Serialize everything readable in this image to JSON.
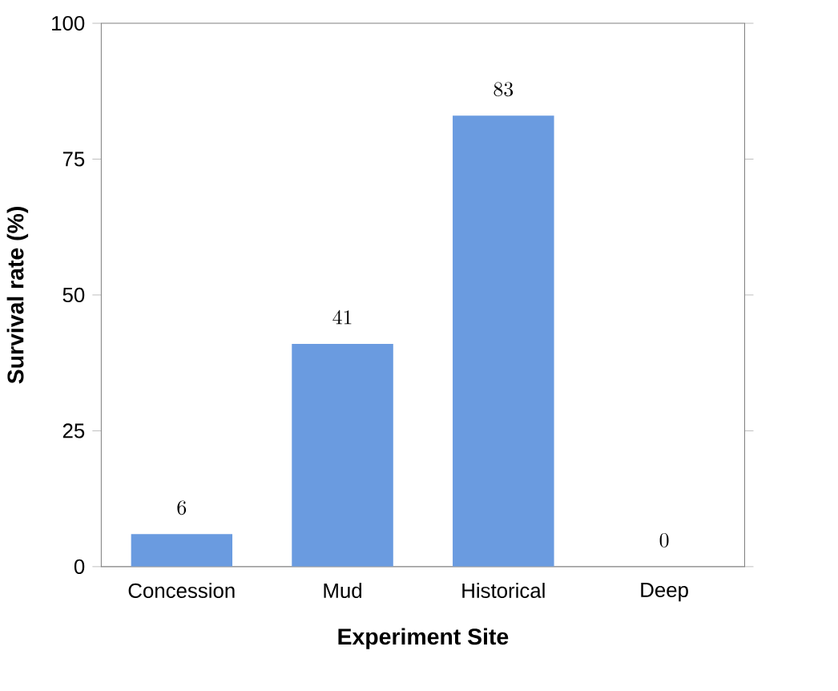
{
  "chart_data": {
    "type": "bar",
    "xlabel": "Experiment Site",
    "ylabel": "Survival rate (%)",
    "categories": [
      "Concession",
      "Mud",
      "Historical",
      "Deep"
    ],
    "values": [
      6,
      41,
      83,
      0
    ],
    "color": "#6a9be0",
    "ylim": [
      0,
      100
    ],
    "yticks": [
      0,
      25,
      50,
      75,
      100
    ],
    "data_labels": true
  }
}
